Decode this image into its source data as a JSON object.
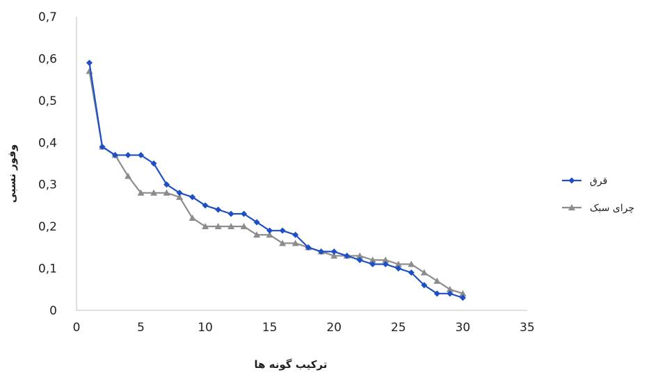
{
  "chart_data": {
    "type": "line",
    "xlabel": "ترکیب گونه ها",
    "ylabel": "وفور نسبی",
    "xlim": [
      0,
      35
    ],
    "ylim": [
      0,
      0.7
    ],
    "x_ticks": [
      0,
      5,
      10,
      15,
      20,
      25,
      30,
      35
    ],
    "y_ticks": [
      0,
      0.1,
      0.2,
      0.3,
      0.4,
      0.5,
      0.6,
      0.7
    ],
    "x_tick_labels": [
      "0",
      "5",
      "10",
      "15",
      "20",
      "25",
      "30",
      "35"
    ],
    "y_tick_labels": [
      "0",
      "0,1",
      "0,2",
      "0,3",
      "0,4",
      "0,5",
      "0,6",
      "0,7"
    ],
    "grid": false,
    "legend_position": "right",
    "series": [
      {
        "name": "قرق",
        "color": "#1f4fc4",
        "marker": "diamond",
        "x": [
          1,
          2,
          3,
          4,
          5,
          6,
          7,
          8,
          9,
          10,
          11,
          12,
          13,
          14,
          15,
          16,
          17,
          18,
          19,
          20,
          21,
          22,
          23,
          24,
          25,
          26,
          27,
          28,
          29,
          30
        ],
        "y": [
          0.59,
          0.39,
          0.37,
          0.37,
          0.37,
          0.35,
          0.3,
          0.28,
          0.27,
          0.25,
          0.24,
          0.23,
          0.23,
          0.21,
          0.19,
          0.19,
          0.18,
          0.15,
          0.14,
          0.14,
          0.13,
          0.12,
          0.11,
          0.11,
          0.1,
          0.09,
          0.06,
          0.04,
          0.04,
          0.03
        ]
      },
      {
        "name": "چرای سبک",
        "color": "#8c8c8c",
        "marker": "triangle",
        "x": [
          1,
          2,
          3,
          4,
          5,
          6,
          7,
          8,
          9,
          10,
          11,
          12,
          13,
          14,
          15,
          16,
          17,
          18,
          19,
          20,
          21,
          22,
          23,
          24,
          25,
          26,
          27,
          28,
          29,
          30
        ],
        "y": [
          0.57,
          0.39,
          0.37,
          0.32,
          0.28,
          0.28,
          0.28,
          0.27,
          0.22,
          0.2,
          0.2,
          0.2,
          0.2,
          0.18,
          0.18,
          0.16,
          0.16,
          0.15,
          0.14,
          0.13,
          0.13,
          0.13,
          0.12,
          0.12,
          0.11,
          0.11,
          0.09,
          0.07,
          0.05,
          0.04
        ]
      }
    ]
  }
}
